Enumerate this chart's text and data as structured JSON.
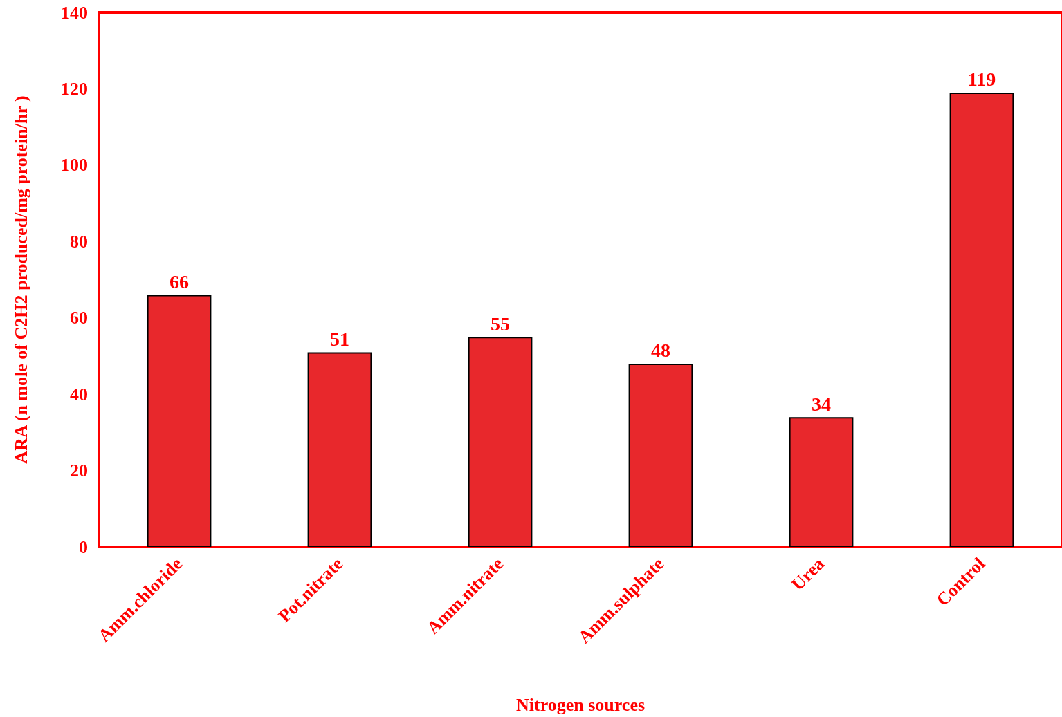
{
  "chart_data": {
    "type": "bar",
    "xlabel": "Nitrogen sources",
    "ylabel": "ARA (n mole of C2H2 produced/mg protein/hr )",
    "categories": [
      "Amm.chloride",
      "Pot.nitrate",
      "Amm.nitrate",
      "Amm.sulphate",
      "Urea",
      "Control"
    ],
    "values": [
      66,
      51,
      55,
      48,
      34,
      119
    ],
    "color": "#e8282c",
    "ylim": [
      0,
      140
    ],
    "yticks": [
      0,
      20,
      40,
      60,
      80,
      100,
      120,
      140
    ],
    "grid": false,
    "data_labels": true
  }
}
